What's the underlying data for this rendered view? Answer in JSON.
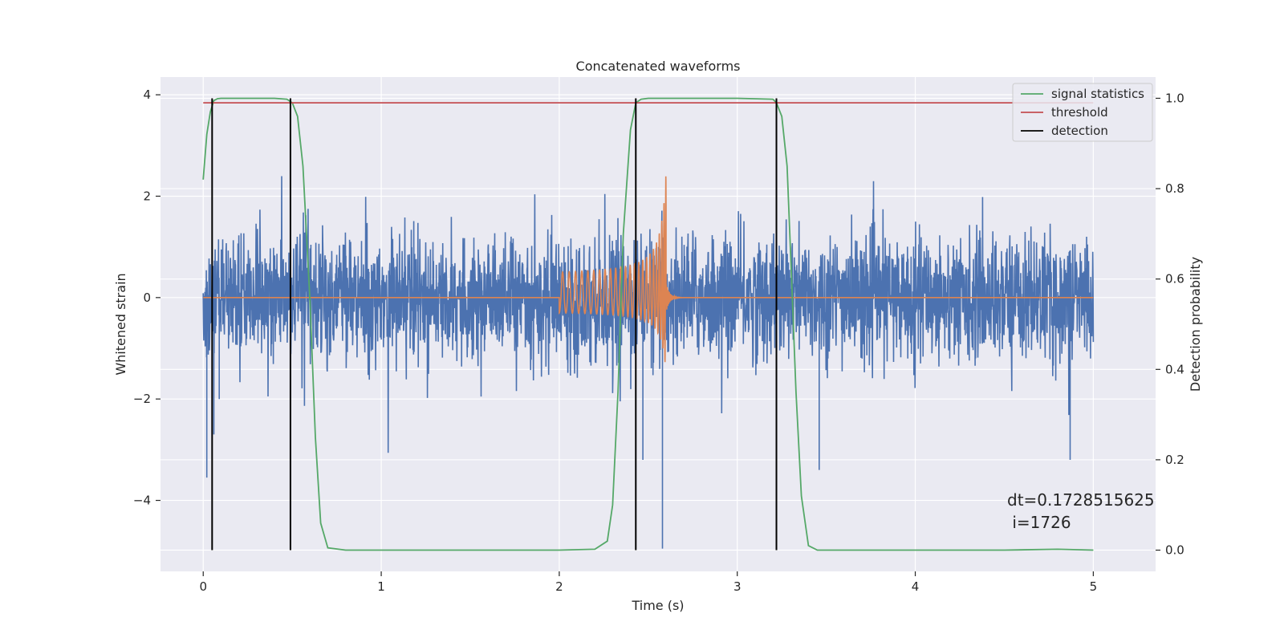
{
  "chart_data": {
    "type": "line",
    "title": "Concatenated waveforms",
    "xlabel": "Time (s)",
    "ylabel_left": "Whitened strain",
    "ylabel_right": "Detection probability",
    "xlim": [
      -0.24,
      5.35
    ],
    "ylim_left": [
      -5.4,
      4.35
    ],
    "ylim_right": [
      -0.047,
      1.047
    ],
    "x_ticks": [
      0,
      1,
      2,
      3,
      4,
      5
    ],
    "y_left_ticks": [
      -4,
      -2,
      0,
      2,
      4
    ],
    "y_right_ticks": [
      0.0,
      0.2,
      0.4,
      0.6,
      0.8,
      1.0
    ],
    "y_right_tick_labels": [
      "0.0",
      "0.2",
      "0.4",
      "0.6",
      "0.8",
      "1.0"
    ],
    "grid": true,
    "legend_position": "top-right",
    "legend": [
      "signal statistics",
      "threshold",
      "detection"
    ],
    "colors": {
      "strain": "#4c72b0",
      "template": "#dd8452",
      "signal_statistics": "#55a868",
      "threshold": "#c44e52",
      "detection": "#000000",
      "axes_background": "#eaeaf2",
      "grid": "#ffffff"
    },
    "strain": {
      "x_start": 0,
      "x_end": 5,
      "std": 0.6,
      "range": [
        -5.0,
        2.5
      ]
    },
    "template": {
      "x_start": 2.0,
      "merger": 2.6,
      "x_end": 5.0,
      "amplitude_start": 0.45,
      "amplitude_peak": 2.5,
      "amplitude_min_peak": -1.5
    },
    "signal_statistics": {
      "x": [
        0,
        0.02,
        0.04,
        0.06,
        0.08,
        0.1,
        0.2,
        0.3,
        0.4,
        0.47,
        0.5,
        0.53,
        0.56,
        0.6,
        0.63,
        0.66,
        0.7,
        0.8,
        1.0,
        1.5,
        2.0,
        2.2,
        2.27,
        2.3,
        2.33,
        2.36,
        2.4,
        2.43,
        2.46,
        2.5,
        2.6,
        2.8,
        3.0,
        3.2,
        3.22,
        3.25,
        3.28,
        3.3,
        3.33,
        3.36,
        3.4,
        3.45,
        3.6,
        4.0,
        4.5,
        4.8,
        5.0
      ],
      "y": [
        0.82,
        0.92,
        0.97,
        0.995,
        0.999,
        1.0,
        1.0,
        1.0,
        1.0,
        0.998,
        0.99,
        0.96,
        0.85,
        0.55,
        0.25,
        0.06,
        0.005,
        0.0,
        0.0,
        0.0,
        0.0,
        0.002,
        0.02,
        0.1,
        0.35,
        0.7,
        0.93,
        0.99,
        0.998,
        1.0,
        1.0,
        1.0,
        1.0,
        0.998,
        0.99,
        0.96,
        0.85,
        0.65,
        0.35,
        0.12,
        0.01,
        0.0,
        0.0,
        0.0,
        0.0,
        0.002,
        0.0
      ]
    },
    "threshold": {
      "value": 0.99,
      "x_start": 0,
      "x_end": 5
    },
    "detections": [
      0.05,
      0.49,
      2.43,
      3.22
    ],
    "detection_span": [
      0.0,
      1.0
    ],
    "annotation": {
      "line1": "dt=0.1728515625",
      "line2": " i=1726"
    }
  }
}
